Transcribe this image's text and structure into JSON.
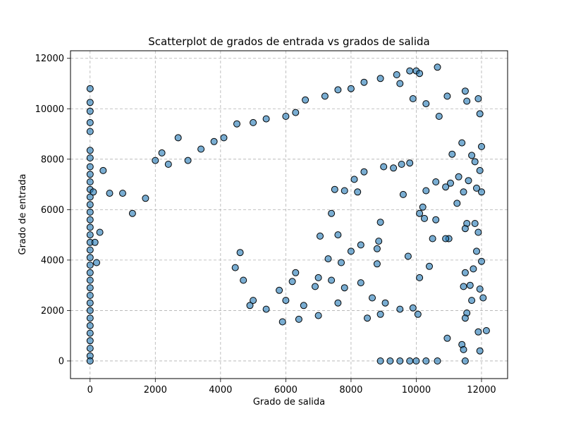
{
  "chart_data": {
    "type": "scatter",
    "title": "Scatterplot de grados de entrada vs grados de salida",
    "xlabel": "Grado de salida",
    "ylabel": "Grado de entrada",
    "xlim": [
      -600,
      12800
    ],
    "ylim": [
      -700,
      12300
    ],
    "xticks": [
      0,
      2000,
      4000,
      6000,
      8000,
      10000,
      12000
    ],
    "yticks": [
      0,
      2000,
      4000,
      6000,
      8000,
      10000,
      12000
    ],
    "grid": true,
    "marker_color": "#1f77b4",
    "marker_edge_color": "#000000",
    "marker_alpha": 0.6,
    "series": [
      {
        "values": [
          [
            0,
            10800
          ],
          [
            0,
            10250
          ],
          [
            0,
            9900
          ],
          [
            0,
            9450
          ],
          [
            0,
            9100
          ],
          [
            0,
            8350
          ],
          [
            0,
            8050
          ],
          [
            0,
            7700
          ],
          [
            0,
            7400
          ],
          [
            0,
            7100
          ],
          [
            0,
            6800
          ],
          [
            0,
            6500
          ],
          [
            0,
            6200
          ],
          [
            0,
            5900
          ],
          [
            0,
            5600
          ],
          [
            0,
            5300
          ],
          [
            0,
            5000
          ],
          [
            0,
            4700
          ],
          [
            0,
            4400
          ],
          [
            0,
            4100
          ],
          [
            0,
            3800
          ],
          [
            0,
            3500
          ],
          [
            0,
            3200
          ],
          [
            0,
            2900
          ],
          [
            0,
            2600
          ],
          [
            0,
            2300
          ],
          [
            0,
            2000
          ],
          [
            0,
            1700
          ],
          [
            0,
            1400
          ],
          [
            0,
            1100
          ],
          [
            0,
            800
          ],
          [
            0,
            500
          ],
          [
            0,
            200
          ],
          [
            0,
            0
          ],
          [
            100,
            6700
          ],
          [
            150,
            4700
          ],
          [
            200,
            3900
          ],
          [
            300,
            5100
          ],
          [
            400,
            7550
          ],
          [
            600,
            6650
          ],
          [
            1000,
            6650
          ],
          [
            1300,
            5850
          ],
          [
            1700,
            6450
          ],
          [
            2000,
            7950
          ],
          [
            2200,
            8250
          ],
          [
            2700,
            8850
          ],
          [
            2400,
            7800
          ],
          [
            3000,
            7950
          ],
          [
            3400,
            8400
          ],
          [
            3800,
            8700
          ],
          [
            4100,
            8850
          ],
          [
            4500,
            9400
          ],
          [
            5000,
            9450
          ],
          [
            5400,
            9600
          ],
          [
            6000,
            9700
          ],
          [
            6600,
            10350
          ],
          [
            6300,
            9850
          ],
          [
            7200,
            10500
          ],
          [
            7600,
            10750
          ],
          [
            8000,
            10800
          ],
          [
            8400,
            11050
          ],
          [
            8900,
            11200
          ],
          [
            9400,
            11350
          ],
          [
            9800,
            11500
          ],
          [
            10000,
            11500
          ],
          [
            10100,
            11400
          ],
          [
            10650,
            11650
          ],
          [
            9500,
            11000
          ],
          [
            9900,
            10400
          ],
          [
            10300,
            10200
          ],
          [
            10700,
            9700
          ],
          [
            10950,
            10500
          ],
          [
            11500,
            10700
          ],
          [
            11550,
            10300
          ],
          [
            11900,
            10400
          ],
          [
            11950,
            9800
          ],
          [
            11800,
            7900
          ],
          [
            12000,
            8500
          ],
          [
            11700,
            8150
          ],
          [
            11400,
            8650
          ],
          [
            11100,
            8200
          ],
          [
            11300,
            7300
          ],
          [
            11600,
            7150
          ],
          [
            11950,
            7550
          ],
          [
            11850,
            6850
          ],
          [
            12000,
            6700
          ],
          [
            11450,
            6700
          ],
          [
            11050,
            7050
          ],
          [
            10900,
            6900
          ],
          [
            10600,
            7100
          ],
          [
            10300,
            6750
          ],
          [
            10200,
            6100
          ],
          [
            10100,
            5850
          ],
          [
            10250,
            5650
          ],
          [
            10600,
            5600
          ],
          [
            11000,
            4850
          ],
          [
            10900,
            4850
          ],
          [
            11250,
            6250
          ],
          [
            11550,
            5450
          ],
          [
            11500,
            5250
          ],
          [
            11800,
            5450
          ],
          [
            11900,
            5100
          ],
          [
            11850,
            4350
          ],
          [
            11750,
            3650
          ],
          [
            12000,
            3950
          ],
          [
            11500,
            3500
          ],
          [
            11650,
            3000
          ],
          [
            11450,
            2950
          ],
          [
            11950,
            2850
          ],
          [
            12050,
            2500
          ],
          [
            11700,
            2400
          ],
          [
            11550,
            1900
          ],
          [
            11900,
            1150
          ],
          [
            12150,
            1200
          ],
          [
            11500,
            1700
          ],
          [
            11400,
            650
          ],
          [
            11450,
            450
          ],
          [
            11950,
            400
          ],
          [
            11500,
            0
          ],
          [
            10650,
            0
          ],
          [
            10300,
            0
          ],
          [
            10000,
            0
          ],
          [
            9800,
            0
          ],
          [
            9500,
            0
          ],
          [
            9200,
            0
          ],
          [
            8900,
            0
          ],
          [
            10950,
            900
          ],
          [
            10400,
            3750
          ],
          [
            10500,
            4850
          ],
          [
            10100,
            3300
          ],
          [
            9750,
            4150
          ],
          [
            9600,
            6600
          ],
          [
            9550,
            7800
          ],
          [
            9800,
            7850
          ],
          [
            9300,
            7650
          ],
          [
            9000,
            7700
          ],
          [
            8900,
            5500
          ],
          [
            8850,
            4750
          ],
          [
            8800,
            4450
          ],
          [
            8800,
            3850
          ],
          [
            8400,
            7500
          ],
          [
            8200,
            6700
          ],
          [
            8100,
            7200
          ],
          [
            8300,
            4600
          ],
          [
            8000,
            4350
          ],
          [
            7800,
            6750
          ],
          [
            7500,
            6800
          ],
          [
            7400,
            5850
          ],
          [
            7600,
            5000
          ],
          [
            7700,
            3900
          ],
          [
            7300,
            4050
          ],
          [
            7050,
            4950
          ],
          [
            7000,
            3300
          ],
          [
            6900,
            2950
          ],
          [
            6300,
            3500
          ],
          [
            6200,
            3150
          ],
          [
            6550,
            2200
          ],
          [
            7400,
            3200
          ],
          [
            7800,
            2900
          ],
          [
            8300,
            3100
          ],
          [
            8650,
            2500
          ],
          [
            9050,
            2300
          ],
          [
            9500,
            2050
          ],
          [
            9900,
            2100
          ],
          [
            10050,
            1850
          ],
          [
            8900,
            1850
          ],
          [
            8500,
            1700
          ],
          [
            7600,
            2300
          ],
          [
            7000,
            1800
          ],
          [
            6400,
            1650
          ],
          [
            5900,
            1550
          ],
          [
            5400,
            2050
          ],
          [
            4900,
            2200
          ],
          [
            5800,
            2800
          ],
          [
            4700,
            3200
          ],
          [
            4450,
            3700
          ],
          [
            4600,
            4300
          ],
          [
            5000,
            2400
          ],
          [
            6000,
            2400
          ]
        ]
      }
    ]
  }
}
